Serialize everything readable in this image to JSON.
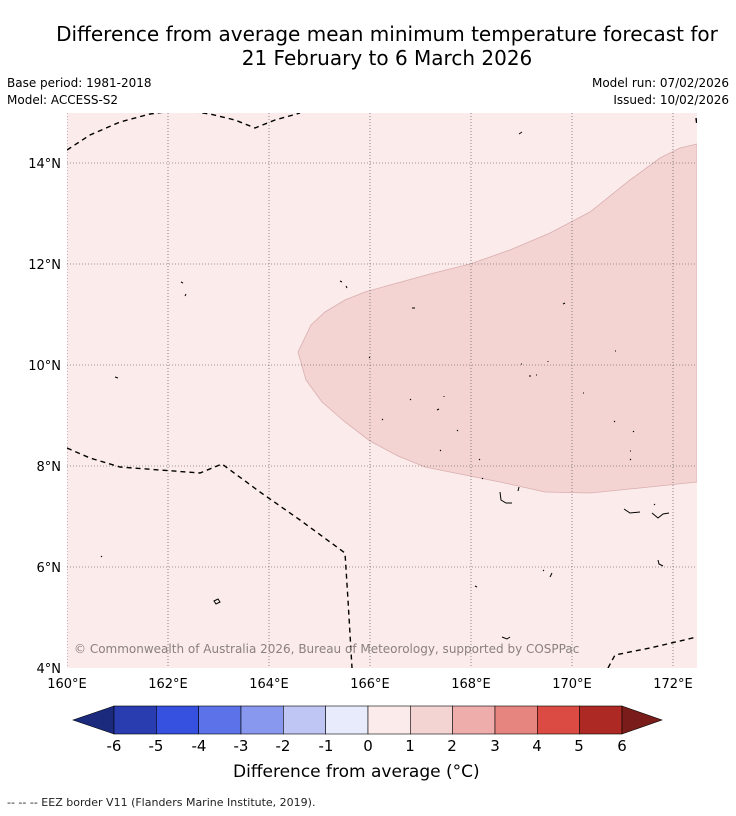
{
  "title": {
    "line1": "Difference from average mean minimum temperature forecast for",
    "line2": "21 February to 6 March 2026"
  },
  "meta": {
    "base_period": "Base period: 1981-2018",
    "model": "Model: ACCESS-S2",
    "model_run": "Model run: 07/02/2026",
    "issued": "Issued: 10/02/2026"
  },
  "map": {
    "lon_labels": [
      "160°E",
      "162°E",
      "164°E",
      "166°E",
      "168°E",
      "170°E",
      "172°E"
    ],
    "lat_labels": [
      "14°N",
      "12°N",
      "10°N",
      "8°N",
      "6°N",
      "4°N"
    ],
    "copyright": "© Commonwealth of Australia 2026, Bureau of Meteorology, supported by COSPPac",
    "colors": {
      "background_class": "#fbebea",
      "anomaly_class": "#f4d4d3",
      "anomaly_border": "#d9aeb0"
    }
  },
  "colorbar": {
    "labels": [
      "-6",
      "-5",
      "-4",
      "-3",
      "-2",
      "-1",
      "0",
      "1",
      "2",
      "3",
      "4",
      "5",
      "6"
    ],
    "low_extend_color": "#1c2a7e",
    "high_extend_color": "#7a1d1a",
    "colors": [
      "#2a3db0",
      "#3651e0",
      "#5b72e8",
      "#8898ee",
      "#bfc6f4",
      "#e8ebfc",
      "#fbebea",
      "#f4d4d3",
      "#eeadab",
      "#e6847f",
      "#db4a43",
      "#ad2a24"
    ],
    "title": "Difference from average (°C)"
  },
  "footer": "--  --  -- EEZ border V11 (Flanders Marine Institute, 2019)."
}
